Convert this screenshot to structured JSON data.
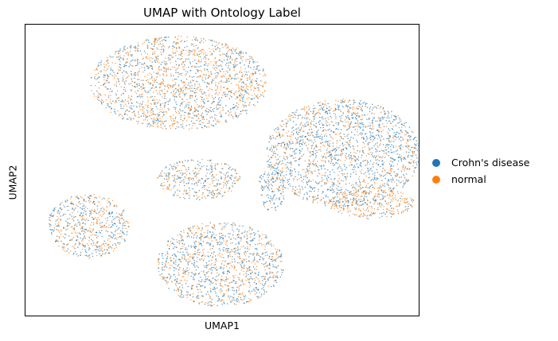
{
  "chart_data": {
    "type": "scatter",
    "title": "UMAP with Ontology Label",
    "xlabel": "UMAP1",
    "ylabel": "UMAP2",
    "xticks": [],
    "yticks": [],
    "grid": false,
    "legend_position": "right-outside",
    "series": [
      {
        "name": "Crohn's disease",
        "color": "#1f77b4"
      },
      {
        "name": "normal",
        "color": "#ff7f0e"
      }
    ],
    "clusters": [
      {
        "label": "upper-left",
        "cx": 3.9,
        "cy": 8.0,
        "rx": 2.25,
        "ry": 1.6,
        "crohn_share": 0.45
      },
      {
        "label": "right",
        "cx": 8.05,
        "cy": 5.6,
        "rx": 1.95,
        "ry": 1.85,
        "crohn_share": 0.65
      },
      {
        "label": "right-lower",
        "cx": 8.75,
        "cy": 3.9,
        "rx": 1.1,
        "ry": 0.55,
        "crohn_share": 0.2
      },
      {
        "label": "center-small",
        "cx": 4.4,
        "cy": 4.7,
        "rx": 1.05,
        "ry": 0.7,
        "crohn_share": 0.55
      },
      {
        "label": "left-lower",
        "cx": 1.6,
        "cy": 3.1,
        "rx": 1.05,
        "ry": 1.1,
        "crohn_share": 0.5
      },
      {
        "label": "bottom-center",
        "cx": 4.95,
        "cy": 1.8,
        "rx": 1.6,
        "ry": 1.45,
        "crohn_share": 0.55
      },
      {
        "label": "bridge",
        "cx": 6.25,
        "cy": 4.4,
        "rx": 0.35,
        "ry": 0.8,
        "crohn_share": 0.7
      }
    ]
  }
}
